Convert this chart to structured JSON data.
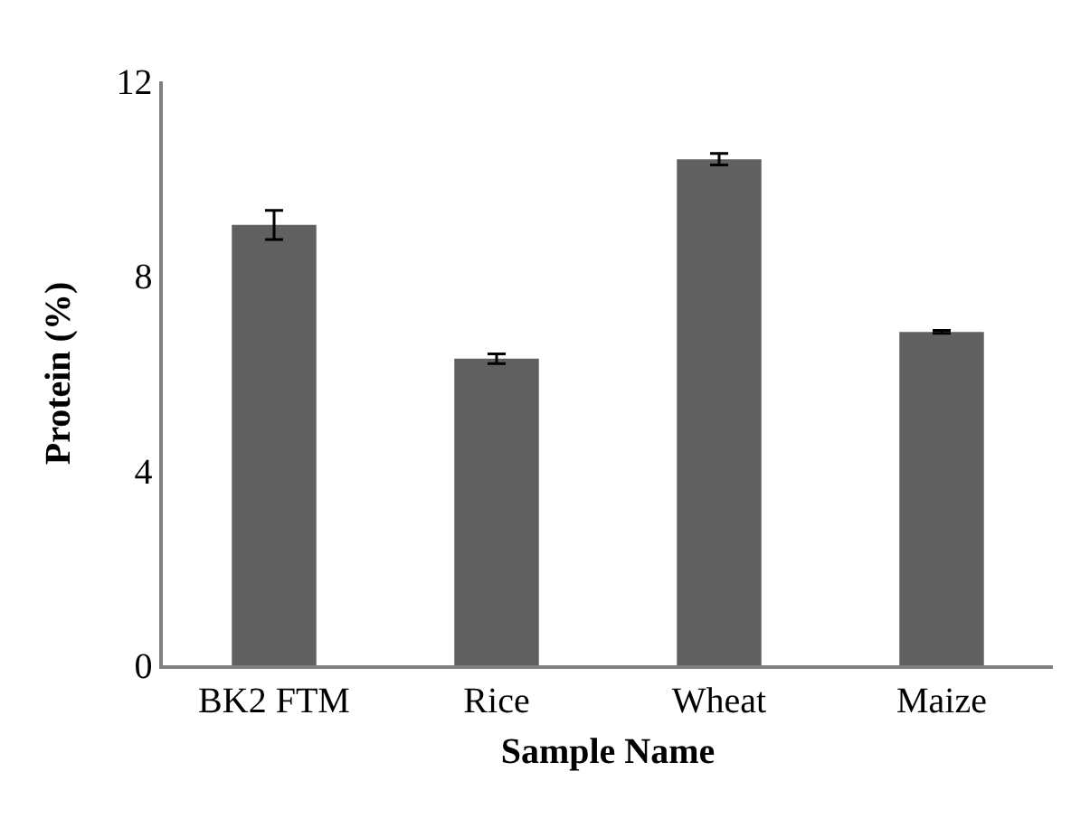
{
  "chart_data": {
    "type": "bar",
    "xlabel": "Sample Name",
    "ylabel": "Protein (%)",
    "categories": [
      "BK2 FTM",
      "Rice",
      "Wheat",
      "Maize"
    ],
    "values": [
      9.05,
      6.3,
      10.4,
      6.85
    ],
    "errors": [
      0.3,
      0.1,
      0.12,
      0.03
    ],
    "color": "#606060",
    "ylim": [
      0,
      12
    ],
    "yticks": [
      0,
      4,
      8,
      12
    ],
    "grid": false,
    "legend": false
  }
}
